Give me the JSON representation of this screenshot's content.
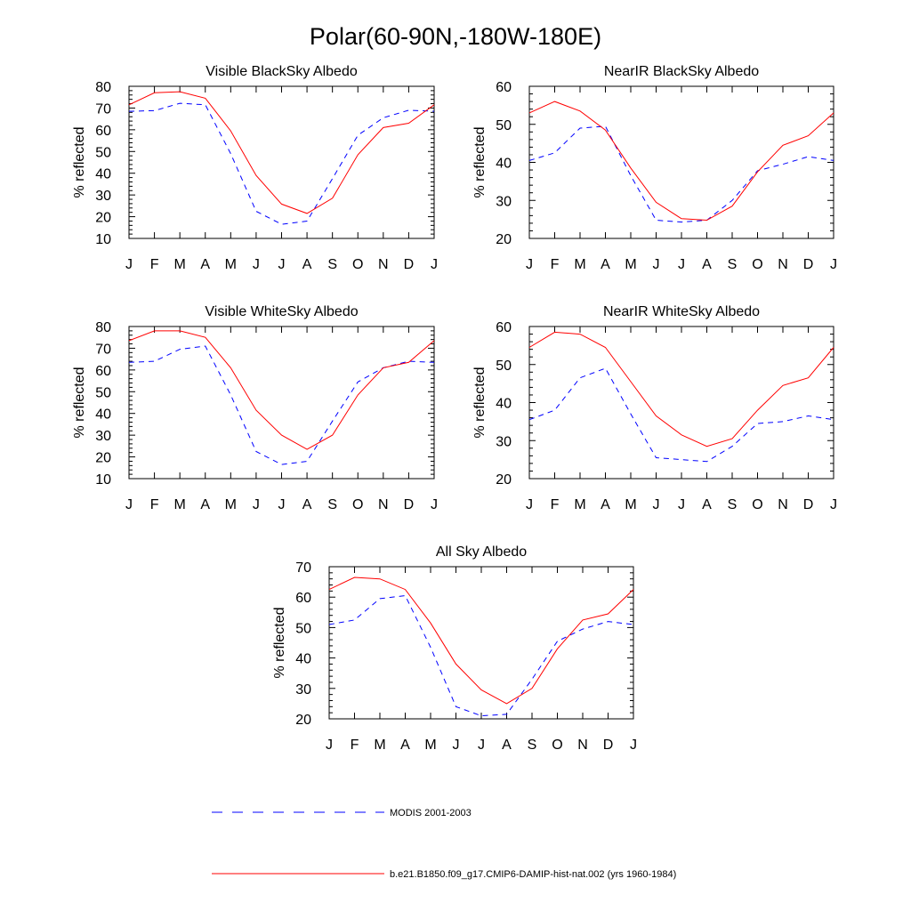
{
  "figure": {
    "title": "Polar(60-90N,-180W-180E)"
  },
  "legend": {
    "entries": [
      {
        "label": "MODIS 2001-2003",
        "color": "#0000ff",
        "style": "dashed"
      },
      {
        "label": "b.e21.B1850.f09_g17.CMIP6-DAMIP-hist-nat.002 (yrs 1960-1984)",
        "color": "#ff0000",
        "style": "solid"
      }
    ]
  },
  "chart_data": [
    {
      "type": "line",
      "title": "Visible BlackSky Albedo",
      "xlabel": "",
      "ylabel": "% reflected",
      "categories": [
        "J",
        "F",
        "M",
        "A",
        "M",
        "J",
        "J",
        "A",
        "S",
        "O",
        "N",
        "D",
        "J"
      ],
      "ylim": [
        10,
        80
      ],
      "yticks": [
        10,
        20,
        30,
        40,
        50,
        60,
        70,
        80
      ],
      "series": [
        {
          "name": "MODIS 2001-2003",
          "color": "#0000ff",
          "style": "dashed",
          "values": [
            68.5,
            68.8,
            72.2,
            71.5,
            49.0,
            22.5,
            16.5,
            18.0,
            37.5,
            57.5,
            65.5,
            69.0,
            68.5
          ]
        },
        {
          "name": "b.e21.B1850.f09_g17.CMIP6-DAMIP-hist-nat.002 (yrs 1960-1984)",
          "color": "#ff0000",
          "style": "solid",
          "values": [
            71.5,
            77.0,
            77.5,
            74.5,
            59.5,
            39.0,
            25.8,
            21.5,
            28.5,
            48.5,
            61.0,
            63.0,
            71.5
          ]
        }
      ]
    },
    {
      "type": "line",
      "title": "NearIR BlackSky Albedo",
      "xlabel": "",
      "ylabel": "% reflected",
      "categories": [
        "J",
        "F",
        "M",
        "A",
        "M",
        "J",
        "J",
        "A",
        "S",
        "O",
        "N",
        "D",
        "J"
      ],
      "ylim": [
        20,
        60
      ],
      "yticks": [
        20,
        30,
        40,
        50,
        60
      ],
      "series": [
        {
          "name": "MODIS 2001-2003",
          "color": "#0000ff",
          "style": "dashed",
          "values": [
            40.5,
            42.5,
            49.0,
            49.5,
            36.5,
            24.8,
            24.3,
            24.8,
            30.0,
            37.8,
            39.5,
            41.5,
            40.5
          ]
        },
        {
          "name": "b.e21.B1850.f09_g17.CMIP6-DAMIP-hist-nat.002 (yrs 1960-1984)",
          "color": "#ff0000",
          "style": "solid",
          "values": [
            53.0,
            56.0,
            53.5,
            48.5,
            38.5,
            29.5,
            25.2,
            24.8,
            28.5,
            37.5,
            44.5,
            47.0,
            53.0
          ]
        }
      ]
    },
    {
      "type": "line",
      "title": "Visible WhiteSky Albedo",
      "xlabel": "",
      "ylabel": "% reflected",
      "categories": [
        "J",
        "F",
        "M",
        "A",
        "M",
        "J",
        "J",
        "A",
        "S",
        "O",
        "N",
        "D",
        "J"
      ],
      "ylim": [
        10,
        80
      ],
      "yticks": [
        10,
        20,
        30,
        40,
        50,
        60,
        70,
        80
      ],
      "series": [
        {
          "name": "MODIS 2001-2003",
          "color": "#0000ff",
          "style": "dashed",
          "values": [
            63.5,
            64.0,
            69.5,
            71.0,
            48.5,
            22.5,
            16.5,
            18.0,
            36.5,
            54.5,
            61.0,
            64.0,
            63.5
          ]
        },
        {
          "name": "b.e21.B1850.f09_g17.CMIP6-DAMIP-hist-nat.002 (yrs 1960-1984)",
          "color": "#ff0000",
          "style": "solid",
          "values": [
            73.5,
            78.0,
            78.0,
            75.0,
            61.0,
            41.5,
            30.0,
            23.5,
            30.0,
            48.5,
            61.0,
            63.5,
            73.5
          ]
        }
      ]
    },
    {
      "type": "line",
      "title": "NearIR WhiteSky Albedo",
      "xlabel": "",
      "ylabel": "% reflected",
      "categories": [
        "J",
        "F",
        "M",
        "A",
        "M",
        "J",
        "J",
        "A",
        "S",
        "O",
        "N",
        "D",
        "J"
      ],
      "ylim": [
        20,
        60
      ],
      "yticks": [
        20,
        30,
        40,
        50,
        60
      ],
      "series": [
        {
          "name": "MODIS 2001-2003",
          "color": "#0000ff",
          "style": "dashed",
          "values": [
            35.5,
            38.0,
            46.5,
            49.0,
            37.0,
            25.5,
            25.0,
            24.5,
            28.5,
            34.5,
            35.0,
            36.5,
            35.5
          ]
        },
        {
          "name": "b.e21.B1850.f09_g17.CMIP6-DAMIP-hist-nat.002 (yrs 1960-1984)",
          "color": "#ff0000",
          "style": "solid",
          "values": [
            54.5,
            58.5,
            58.0,
            54.5,
            45.5,
            36.5,
            31.5,
            28.5,
            30.5,
            38.0,
            44.5,
            46.5,
            54.5
          ]
        }
      ]
    },
    {
      "type": "line",
      "title": "All Sky Albedo",
      "xlabel": "",
      "ylabel": "% reflected",
      "categories": [
        "J",
        "F",
        "M",
        "A",
        "M",
        "J",
        "J",
        "A",
        "S",
        "O",
        "N",
        "D",
        "J"
      ],
      "ylim": [
        20,
        70
      ],
      "yticks": [
        20,
        30,
        40,
        50,
        60,
        70
      ],
      "series": [
        {
          "name": "MODIS 2001-2003",
          "color": "#0000ff",
          "style": "dashed",
          "values": [
            51.0,
            52.5,
            59.5,
            60.5,
            43.5,
            24.0,
            21.0,
            21.5,
            33.0,
            45.5,
            49.5,
            52.0,
            51.0
          ]
        },
        {
          "name": "b.e21.B1850.f09_g17.CMIP6-DAMIP-hist-nat.002 (yrs 1960-1984)",
          "color": "#ff0000",
          "style": "solid",
          "values": [
            62.5,
            66.5,
            66.0,
            62.5,
            51.5,
            38.0,
            29.5,
            25.0,
            30.0,
            43.0,
            52.5,
            54.5,
            62.5
          ]
        }
      ]
    }
  ]
}
